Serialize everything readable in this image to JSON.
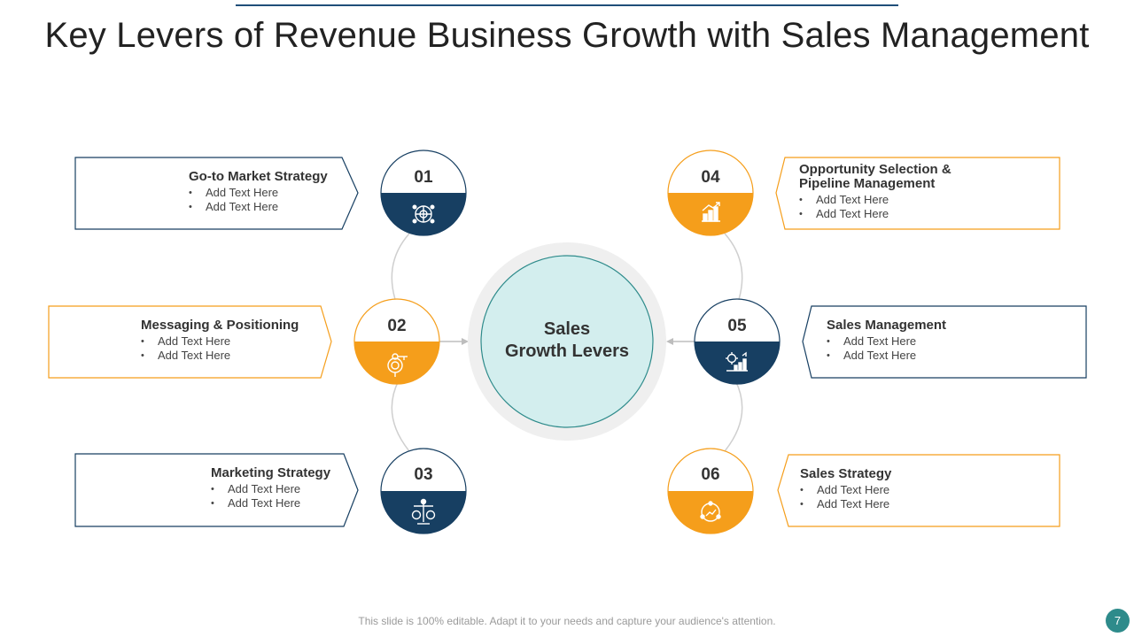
{
  "title": "Key Levers of Revenue Business Growth with Sales Management",
  "center": {
    "line1": "Sales",
    "line2": "Growth  Levers"
  },
  "colors": {
    "navy": "#173f62",
    "orange": "#f59e1b",
    "center_fill": "#d3eeee",
    "center_stroke": "#2e8b8b",
    "ring": "#efefef"
  },
  "levers": [
    {
      "number": "01",
      "heading": "Go-to Market Strategy",
      "bullets": [
        "Add Text Here",
        "Add Text Here"
      ],
      "icon": "network-globe-icon"
    },
    {
      "number": "02",
      "heading": "Messaging & Positioning",
      "bullets": [
        "Add Text Here",
        "Add Text Here"
      ],
      "icon": "target-key-icon"
    },
    {
      "number": "03",
      "heading": "Marketing Strategy",
      "bullets": [
        "Add Text Here",
        "Add Text Here"
      ],
      "icon": "money-balance-icon"
    },
    {
      "number": "04",
      "heading_line1": "Opportunity Selection &",
      "heading_line2": "Pipeline Management",
      "bullets": [
        "Add Text Here",
        "Add Text Here"
      ],
      "icon": "growth-chart-icon"
    },
    {
      "number": "05",
      "heading": "Sales Management",
      "bullets": [
        "Add Text Here",
        "Add Text Here"
      ],
      "icon": "gear-chart-icon"
    },
    {
      "number": "06",
      "heading": "Sales Strategy",
      "bullets": [
        "Add Text Here",
        "Add Text Here"
      ],
      "icon": "cycle-chart-icon"
    }
  ],
  "footer": "This slide is 100% editable. Adapt it to your needs and capture your audience's attention.",
  "page_number": "7"
}
